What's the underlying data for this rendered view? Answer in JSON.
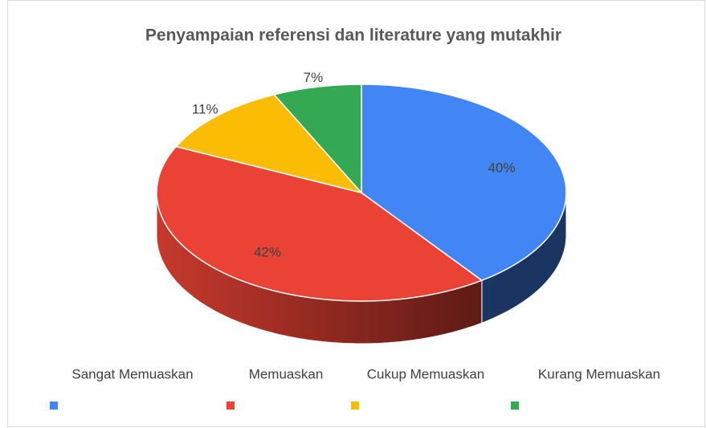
{
  "chart_data": {
    "type": "pie",
    "title": "Penyampaian referensi dan literature yang mutakhir",
    "categories": [
      "Sangat Memuaskan",
      "Memuaskan",
      "Cukup Memuaskan",
      "Kurang Memuaskan"
    ],
    "values": [
      40,
      42,
      11,
      7
    ],
    "value_labels": [
      "40%",
      "42%",
      "11%",
      "7%"
    ],
    "colors": [
      "#4285f4",
      "#ea4335",
      "#fbbc04",
      "#34a853"
    ],
    "legend": "bottom"
  }
}
